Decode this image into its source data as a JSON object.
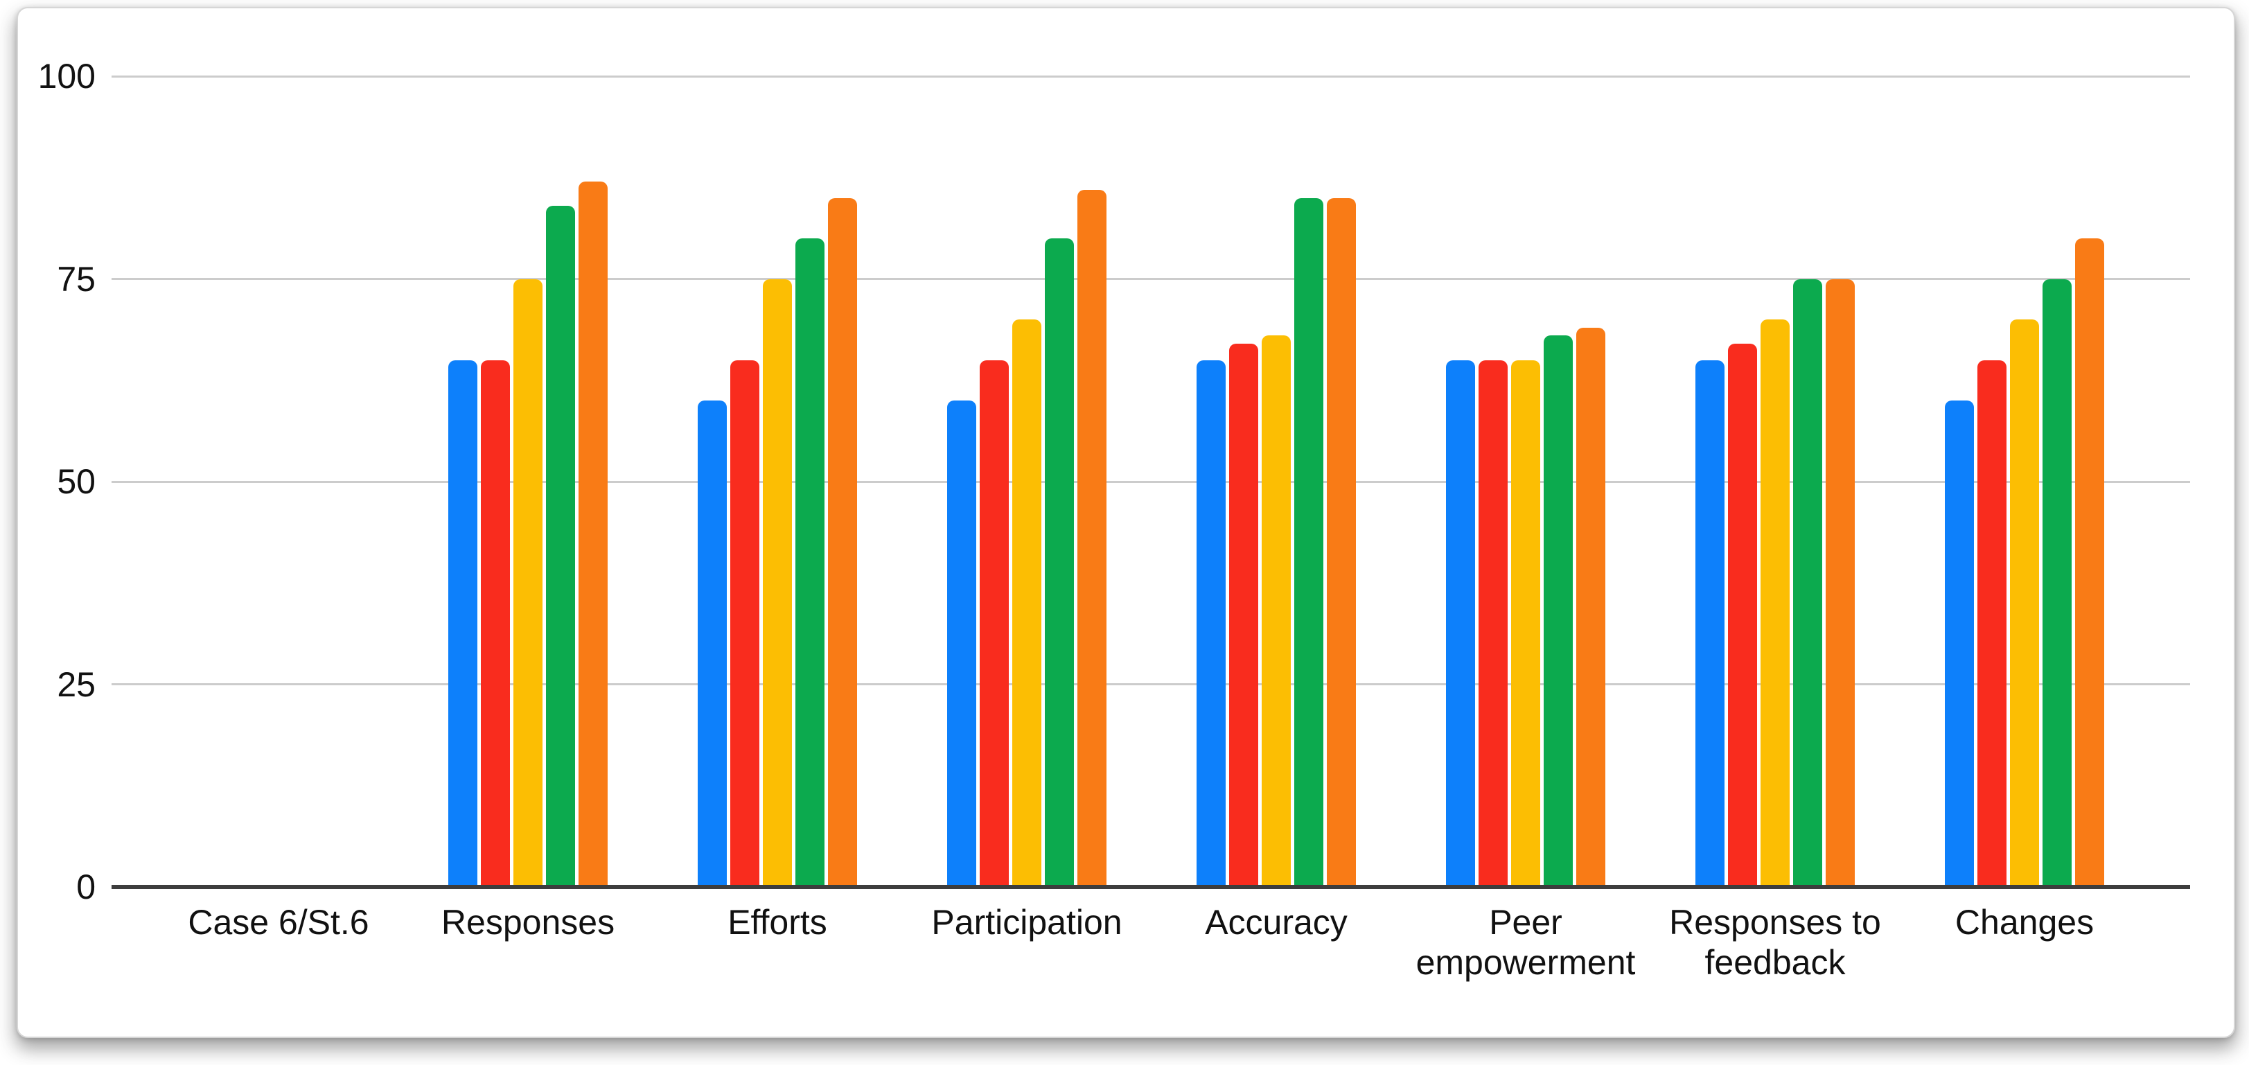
{
  "chart_data": {
    "type": "bar",
    "title": "",
    "xlabel": "",
    "ylabel": "",
    "ylim": [
      0,
      100
    ],
    "y_ticks": [
      0,
      25,
      50,
      75,
      100
    ],
    "grid": true,
    "legend": "none",
    "categories": [
      "Case 6/St.6",
      "Responses",
      "Efforts",
      "Participation",
      "Accuracy",
      "Peer empowerment",
      "Responses to feedback",
      "Changes"
    ],
    "series": [
      {
        "color": "#0d80fb",
        "values": [
          null,
          65,
          60,
          60,
          65,
          65,
          65,
          60
        ]
      },
      {
        "color": "#f92c1e",
        "values": [
          null,
          65,
          65,
          65,
          67,
          65,
          67,
          65
        ]
      },
      {
        "color": "#fcbe03",
        "values": [
          null,
          75,
          75,
          70,
          68,
          65,
          70,
          70
        ]
      },
      {
        "color": "#0caa4e",
        "values": [
          null,
          84,
          80,
          80,
          85,
          68,
          75,
          75
        ]
      },
      {
        "color": "#f97b16",
        "values": [
          null,
          87,
          85,
          86,
          85,
          69,
          75,
          80
        ]
      }
    ],
    "colors": {
      "gridline": "#cccccc",
      "axis_line": "#3d3d3d",
      "text": "#111111",
      "card_background": "#ffffff",
      "page_background": "#ffffff"
    }
  }
}
